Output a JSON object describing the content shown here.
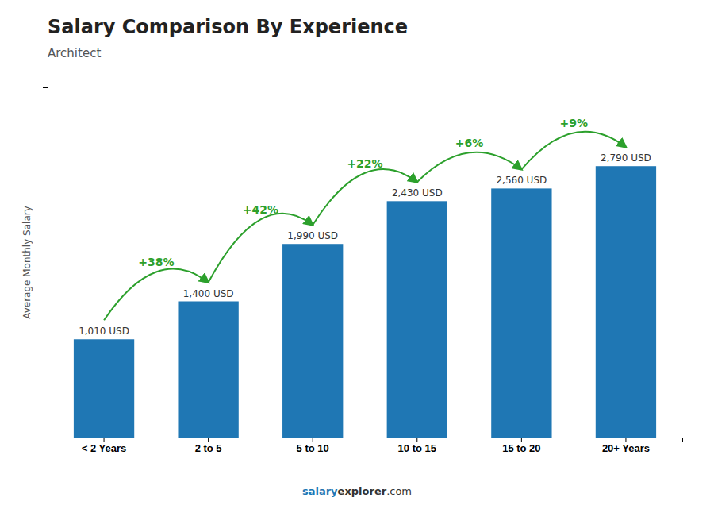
{
  "chart_data": {
    "type": "bar",
    "title": "Salary Comparison By Experience",
    "subtitle": "Architect",
    "y_label": "Average Monthly Salary",
    "categories": [
      "< 2 Years",
      "2 to 5",
      "5 to 10",
      "10 to 15",
      "15 to 20",
      "20+ Years"
    ],
    "values": [
      1010,
      1400,
      1990,
      2430,
      2560,
      2790
    ],
    "value_labels": [
      "1,010 USD",
      "1,400 USD",
      "1,990 USD",
      "2,430 USD",
      "2,560 USD",
      "2,790 USD"
    ],
    "data_labels": true,
    "annotations": [
      "+38%",
      "+42%",
      "+22%",
      "+6%",
      "+9%"
    ],
    "footer": [
      "salary",
      "explorer",
      ".com"
    ],
    "ylim": [
      0,
      3600
    ],
    "tick_labels": "x"
  }
}
